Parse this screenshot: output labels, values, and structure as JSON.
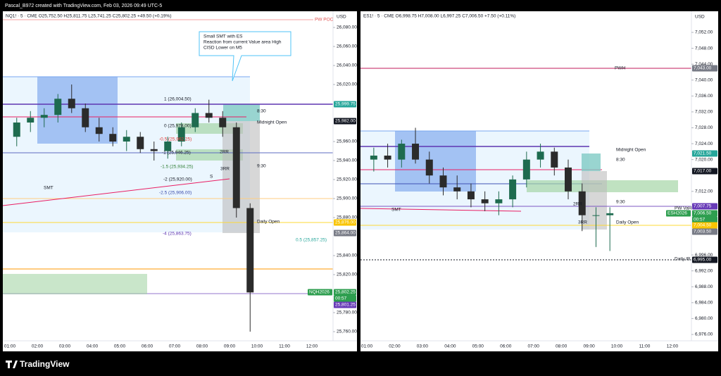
{
  "header": {
    "credit": "Pascal_B972 created with TradingView.com, Feb 03, 2026 09:49 UTC-5"
  },
  "footer": {
    "brand": "TradingView"
  },
  "panels": [
    {
      "symbol_line": "NQ1! · 5 · CME  O25,752.50 H25,811.75 L25,741.25 C25,802.25 +49.50 (+0.19%)",
      "currency": "USD",
      "price_ticks": [
        {
          "value": 26080,
          "label": "26,080.00"
        },
        {
          "value": 26060,
          "label": "26,060.00"
        },
        {
          "value": 26040,
          "label": "26,040.00"
        },
        {
          "value": 26020,
          "label": "26,020.00"
        },
        {
          "value": 25960,
          "label": "25,960.00"
        },
        {
          "value": 25940,
          "label": "25,940.00"
        },
        {
          "value": 25920,
          "label": "25,920.00"
        },
        {
          "value": 25900,
          "label": "25,900.00"
        },
        {
          "value": 25880,
          "label": "25,880.00"
        },
        {
          "value": 25840,
          "label": "25,840.00"
        },
        {
          "value": 25820,
          "label": "25,820.00"
        },
        {
          "value": 25780,
          "label": "25,780.00"
        },
        {
          "value": 25760,
          "label": "25,760.00"
        }
      ],
      "time_labels": [
        "01:00",
        "02:00",
        "03:00",
        "04:00",
        "05:00",
        "06:00",
        "07:00",
        "08:00",
        "09:00",
        "10:00",
        "11:00",
        "12:00"
      ],
      "up_color": "#1e6b4f",
      "down_color": "#2b2b2b",
      "candles": {
        "open": [
          25965,
          25980,
          25985,
          25988,
          26005,
          25995,
          25975,
          25968,
          25960,
          25965,
          25952,
          25950,
          25960,
          25975,
          25990,
          25985,
          25975,
          25890
        ],
        "high": [
          25985,
          25992,
          25995,
          26010,
          26020,
          26000,
          25985,
          25975,
          25972,
          25970,
          25960,
          25965,
          25980,
          25995,
          26004,
          25992,
          25980,
          25895
        ],
        "low": [
          25955,
          25970,
          25975,
          25980,
          25990,
          25970,
          25960,
          25955,
          25950,
          25948,
          25940,
          25942,
          25955,
          25970,
          25980,
          25965,
          25880,
          25760
        ],
        "close": [
          25980,
          25985,
          25988,
          26005,
          25995,
          25975,
          25968,
          25960,
          25965,
          25952,
          25950,
          25960,
          25975,
          25990,
          25985,
          25975,
          25890,
          25801.25
        ]
      },
      "annotations": [
        "PW POC",
        "Small SMT with ES",
        "Reaction from current Value area High",
        "CISD Lower on M5",
        "1 (26,004.50)",
        "0 (25,978.00)",
        "-0.5 (25,962.25)",
        "-1 (25,946.25)",
        "-1.5 (25,934.25)",
        "-2 (25,920.00)",
        "-2.5 (25,906.00)",
        "-4 (25,863.75)",
        "0.5 (25,857.25)",
        "8:30",
        "Midnight Open",
        "9:30",
        "Daily Open",
        "SMT",
        "2RR",
        "3RR",
        "S"
      ],
      "price_tags": [
        {
          "text": "25,999.75",
          "color": "#26a69a"
        },
        {
          "text": "25,982.00",
          "color": "#131722"
        },
        {
          "text": "25,876.00",
          "color": "#f9c400"
        },
        {
          "text": "25,864.00",
          "color": "#787b86"
        },
        {
          "text": "25,802.25",
          "color": "#2e9e4f"
        },
        {
          "text": "00:57",
          "color": "#2e9e4f"
        },
        {
          "text": "25,801.25",
          "color": "#673ab7"
        },
        {
          "text": "NQH2026",
          "color": "#2e9e4f"
        }
      ]
    },
    {
      "symbol_line": "ES1! · 5 · CME  O6,998.75 H7,008.00 L6,997.25 C7,006.50 +7.50 (+0.11%)",
      "currency": "USD",
      "price_ticks": [
        {
          "value": 7052,
          "label": "7,052.00"
        },
        {
          "value": 7048,
          "label": "7,048.00"
        },
        {
          "value": 7044,
          "label": "7,044.00"
        },
        {
          "value": 7040,
          "label": "7,040.00"
        },
        {
          "value": 7036,
          "label": "7,036.00"
        },
        {
          "value": 7032,
          "label": "7,032.00"
        },
        {
          "value": 7028,
          "label": "7,028.00"
        },
        {
          "value": 7024,
          "label": "7,024.00"
        },
        {
          "value": 7020,
          "label": "7,020.00"
        },
        {
          "value": 7012,
          "label": "7,012.00"
        },
        {
          "value": 6996,
          "label": "6,996.00"
        },
        {
          "value": 6992,
          "label": "6,992.00"
        },
        {
          "value": 6988,
          "label": "6,988.00"
        },
        {
          "value": 6984,
          "label": "6,984.00"
        },
        {
          "value": 6980,
          "label": "6,980.00"
        },
        {
          "value": 6976,
          "label": "6,976.00"
        }
      ],
      "time_labels": [
        "01:00",
        "02:00",
        "03:00",
        "04:00",
        "05:00",
        "06:00",
        "07:00",
        "08:00",
        "09:00",
        "10:00",
        "11:00",
        "12:00"
      ],
      "up_color": "#1e6b4f",
      "down_color": "#2b2b2b",
      "candles": {
        "open": [
          7020,
          7021,
          7020,
          7024,
          7020,
          7016,
          7013,
          7012,
          7010,
          7009,
          7010,
          7015,
          7020,
          7022,
          7018,
          7012,
          7006,
          7006
        ],
        "high": [
          7023,
          7024,
          7025,
          7028,
          7022,
          7018,
          7016,
          7014,
          7012,
          7012,
          7016,
          7022,
          7024,
          7023,
          7020,
          7014,
          7008,
          7008
        ],
        "low": [
          7017,
          7018,
          7018,
          7019,
          7014,
          7011,
          7010,
          7008,
          7007,
          7006,
          7008,
          7013,
          7018,
          7016,
          7010,
          7002,
          6998,
          6997
        ],
        "close": [
          7021,
          7020,
          7024,
          7020,
          7016,
          7013,
          7012,
          7010,
          7009,
          7010,
          7015,
          7020,
          7022,
          7018,
          7012,
          7006,
          7006,
          7006.5
        ]
      },
      "annotations": [
        "PWH",
        "Midnight Open",
        "8:30",
        "9:30",
        "Daily Open",
        "SMT",
        "2RR",
        "3RR",
        "PW VaH",
        "Daily IB"
      ],
      "price_tags": [
        {
          "text": "7,043.00",
          "color": "#787b86"
        },
        {
          "text": "7,021.50",
          "color": "#26a69a"
        },
        {
          "text": "7,017.00",
          "color": "#131722"
        },
        {
          "text": "7,007.75",
          "color": "#673ab7"
        },
        {
          "text": "7,006.50",
          "color": "#2e9e4f"
        },
        {
          "text": "00:57",
          "color": "#2e9e4f"
        },
        {
          "text": "7,004.50",
          "color": "#f9c400"
        },
        {
          "text": "7,003.50",
          "color": "#787b86"
        },
        {
          "text": "6,995.00",
          "color": "#131722"
        },
        {
          "text": "ESH2026",
          "color": "#2e9e4f"
        }
      ]
    }
  ]
}
